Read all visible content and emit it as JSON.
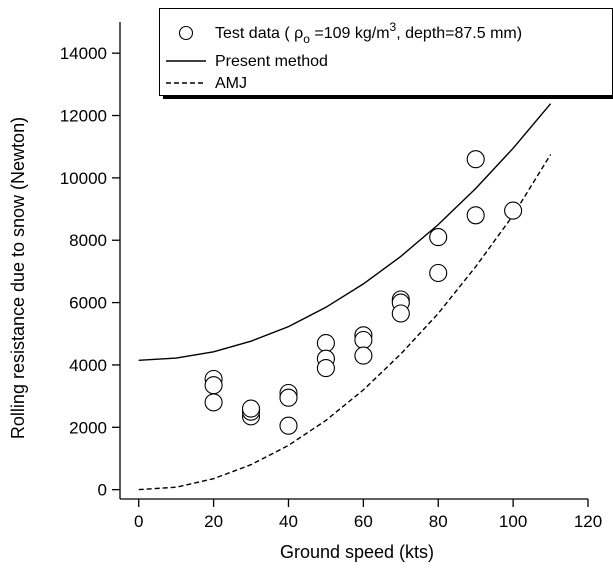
{
  "chart_data": {
    "type": "scatter",
    "xlabel": "Ground speed (kts)",
    "ylabel": "Rolling resistance due to snow (Newton)",
    "xlim": [
      -5,
      120
    ],
    "ylim": [
      -300,
      15000
    ],
    "xticks": [
      0,
      20,
      40,
      60,
      80,
      100,
      120
    ],
    "yticks": [
      0,
      2000,
      4000,
      6000,
      8000,
      10000,
      12000,
      14000
    ],
    "legend": {
      "placement": "top-right",
      "entries": [
        {
          "marker": "circle",
          "text_before": "Test data ( ρ",
          "subscript": "o",
          "text_mid": " =109 kg/m",
          "superscript": "3",
          "text_after": ", depth=87.5 mm)"
        },
        {
          "marker": "solid-line",
          "text": "Present method"
        },
        {
          "marker": "dashed-line",
          "text": "AMJ"
        }
      ]
    },
    "series": [
      {
        "name": "Test data",
        "kind": "points",
        "points": [
          [
            20,
            3550
          ],
          [
            20,
            3350
          ],
          [
            20,
            2800
          ],
          [
            30,
            2350
          ],
          [
            30,
            2500
          ],
          [
            30,
            2600
          ],
          [
            40,
            3100
          ],
          [
            40,
            2950
          ],
          [
            40,
            2050
          ],
          [
            50,
            4700
          ],
          [
            50,
            4200
          ],
          [
            50,
            3900
          ],
          [
            60,
            4950
          ],
          [
            60,
            4800
          ],
          [
            60,
            4300
          ],
          [
            70,
            6100
          ],
          [
            70,
            6000
          ],
          [
            70,
            5650
          ],
          [
            80,
            8100
          ],
          [
            80,
            6950
          ],
          [
            90,
            10600
          ],
          [
            90,
            8800
          ],
          [
            100,
            8950
          ]
        ]
      },
      {
        "name": "Present method",
        "kind": "line",
        "style": "solid",
        "x": [
          0,
          10,
          20,
          30,
          40,
          50,
          60,
          70,
          80,
          90,
          100,
          110
        ],
        "y": [
          4150,
          4220,
          4420,
          4760,
          5230,
          5850,
          6600,
          7480,
          8500,
          9660,
          10950,
          12380
        ]
      },
      {
        "name": "AMJ",
        "kind": "line",
        "style": "dashed",
        "x": [
          0,
          10,
          20,
          30,
          40,
          50,
          60,
          70,
          80,
          90,
          100,
          110
        ],
        "y": [
          0,
          80,
          350,
          800,
          1420,
          2220,
          3200,
          4350,
          5650,
          7150,
          8800,
          10750
        ]
      }
    ]
  }
}
